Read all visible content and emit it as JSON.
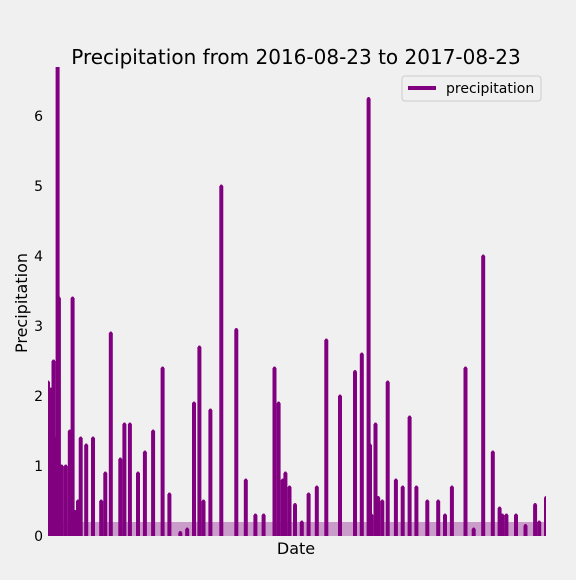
{
  "chart_data": {
    "type": "line",
    "title": "Precipitation from 2016-08-23 to 2017-08-23",
    "xlabel": "Date",
    "ylabel": "Precipitation",
    "xlim": [
      "2016-08-23",
      "2017-08-23"
    ],
    "ylim": [
      0,
      6.7
    ],
    "yticks": [
      0,
      1,
      2,
      3,
      4,
      5,
      6
    ],
    "grid": false,
    "legend": "top-right",
    "series": [
      {
        "name": "precipitation",
        "color": "#800080",
        "x": [
          "2016-08-23",
          "2016-08-24",
          "2016-08-25",
          "2016-08-26",
          "2016-08-27",
          "2016-08-28",
          "2016-08-29",
          "2016-08-30",
          "2016-08-31",
          "2016-09-02",
          "2016-09-05",
          "2016-09-08",
          "2016-09-10",
          "2016-09-12",
          "2016-09-14",
          "2016-09-16",
          "2016-09-20",
          "2016-09-25",
          "2016-10-01",
          "2016-10-04",
          "2016-10-08",
          "2016-10-15",
          "2016-10-18",
          "2016-10-22",
          "2016-10-28",
          "2016-11-02",
          "2016-11-08",
          "2016-11-15",
          "2016-11-20",
          "2016-11-28",
          "2016-12-03",
          "2016-12-08",
          "2016-12-12",
          "2016-12-15",
          "2016-12-20",
          "2016-12-28",
          "2017-01-08",
          "2017-01-15",
          "2017-01-22",
          "2017-01-28",
          "2017-02-05",
          "2017-02-08",
          "2017-02-11",
          "2017-02-12",
          "2017-02-13",
          "2017-02-16",
          "2017-02-20",
          "2017-02-25",
          "2017-03-02",
          "2017-03-08",
          "2017-03-15",
          "2017-03-25",
          "2017-04-05",
          "2017-04-10",
          "2017-04-15",
          "2017-04-16",
          "2017-04-17",
          "2017-04-20",
          "2017-04-22",
          "2017-04-25",
          "2017-04-29",
          "2017-05-05",
          "2017-05-10",
          "2017-05-15",
          "2017-05-20",
          "2017-05-28",
          "2017-06-05",
          "2017-06-10",
          "2017-06-15",
          "2017-06-25",
          "2017-07-01",
          "2017-07-08",
          "2017-07-15",
          "2017-07-20",
          "2017-07-22",
          "2017-07-25",
          "2017-08-01",
          "2017-08-08",
          "2017-08-15",
          "2017-08-18",
          "2017-08-23"
        ],
        "y": [
          2.2,
          0.2,
          2.1,
          1.0,
          2.5,
          1.4,
          1.2,
          6.7,
          3.4,
          1.0,
          1.0,
          1.5,
          3.4,
          0.35,
          0.5,
          1.4,
          1.3,
          1.4,
          0.5,
          0.9,
          2.9,
          1.1,
          1.6,
          1.6,
          0.9,
          1.2,
          1.5,
          2.4,
          0.6,
          0.05,
          0.1,
          1.9,
          2.7,
          0.5,
          1.8,
          5.0,
          2.95,
          0.8,
          0.3,
          0.3,
          2.4,
          1.9,
          0.8,
          0.3,
          0.9,
          0.7,
          0.45,
          0.2,
          0.6,
          0.7,
          2.8,
          2.0,
          2.35,
          2.6,
          6.25,
          1.3,
          0.3,
          1.6,
          0.55,
          0.5,
          2.2,
          0.8,
          0.7,
          1.7,
          0.7,
          0.5,
          0.5,
          0.3,
          0.7,
          2.4,
          0.1,
          4.0,
          1.2,
          0.4,
          0.3,
          0.3,
          0.3,
          0.15,
          0.45,
          0.2,
          0.55
        ]
      }
    ]
  }
}
